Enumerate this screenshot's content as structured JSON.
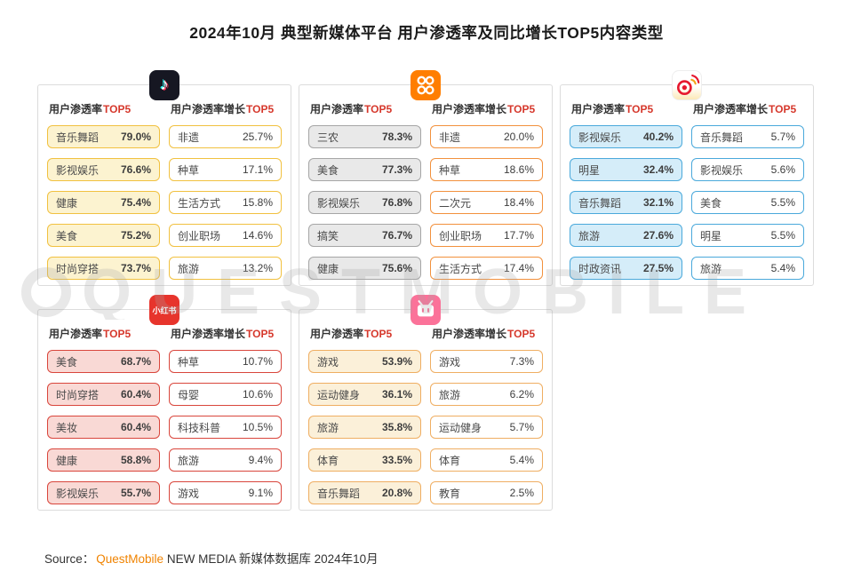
{
  "page": {
    "title": "2024年10月 典型新媒体平台 用户渗透率及同比增长TOP5内容类型",
    "watermark_text": "QUESTMOBILE",
    "source_prefix": "Source：",
    "source_brand": "QuestMobile",
    "source_rest": " NEW MEDIA 新媒体数据库 2024年10月",
    "brand_color": "#F08300",
    "top5_color": "#D6382C"
  },
  "headers": {
    "penetration": "用户渗透率",
    "growth": "用户渗透率增长",
    "top5": "TOP5"
  },
  "panels": [
    {
      "platform": "抖音",
      "left_accent": "#F1C140",
      "left_fill": "#FCF3D0",
      "right_accent": "#F1C140",
      "penetration": [
        {
          "label": "音乐舞蹈",
          "value": "79.0%"
        },
        {
          "label": "影视娱乐",
          "value": "76.6%"
        },
        {
          "label": "健康",
          "value": "75.4%"
        },
        {
          "label": "美食",
          "value": "75.2%"
        },
        {
          "label": "时尚穿搭",
          "value": "73.7%"
        }
      ],
      "growth": [
        {
          "label": "非遗",
          "value": "25.7%"
        },
        {
          "label": "种草",
          "value": "17.1%"
        },
        {
          "label": "生活方式",
          "value": "15.8%"
        },
        {
          "label": "创业职场",
          "value": "14.6%"
        },
        {
          "label": "旅游",
          "value": "13.2%"
        }
      ]
    },
    {
      "platform": "快手",
      "left_accent": "#A6A6A6",
      "left_fill": "#E9E9E9",
      "right_accent": "#F2913D",
      "penetration": [
        {
          "label": "三农",
          "value": "78.3%"
        },
        {
          "label": "美食",
          "value": "77.3%"
        },
        {
          "label": "影视娱乐",
          "value": "76.8%"
        },
        {
          "label": "搞笑",
          "value": "76.7%"
        },
        {
          "label": "健康",
          "value": "75.6%"
        }
      ],
      "growth": [
        {
          "label": "非遗",
          "value": "20.0%"
        },
        {
          "label": "种草",
          "value": "18.6%"
        },
        {
          "label": "二次元",
          "value": "18.4%"
        },
        {
          "label": "创业职场",
          "value": "17.7%"
        },
        {
          "label": "生活方式",
          "value": "17.4%"
        }
      ]
    },
    {
      "platform": "微博",
      "left_accent": "#4AA9DB",
      "left_fill": "#D5EDF9",
      "right_accent": "#4AA9DB",
      "penetration": [
        {
          "label": "影视娱乐",
          "value": "40.2%"
        },
        {
          "label": "明星",
          "value": "32.4%"
        },
        {
          "label": "音乐舞蹈",
          "value": "32.1%"
        },
        {
          "label": "旅游",
          "value": "27.6%"
        },
        {
          "label": "时政资讯",
          "value": "27.5%"
        }
      ],
      "growth": [
        {
          "label": "音乐舞蹈",
          "value": "5.7%"
        },
        {
          "label": "影视娱乐",
          "value": "5.6%"
        },
        {
          "label": "美食",
          "value": "5.5%"
        },
        {
          "label": "明星",
          "value": "5.5%"
        },
        {
          "label": "旅游",
          "value": "5.4%"
        }
      ]
    },
    {
      "platform": "小红书",
      "icon_text": "小红书",
      "left_accent": "#D9463C",
      "left_fill": "#F9D9D5",
      "right_accent": "#D9463C",
      "penetration": [
        {
          "label": "美食",
          "value": "68.7%"
        },
        {
          "label": "时尚穿搭",
          "value": "60.4%"
        },
        {
          "label": "美妆",
          "value": "60.4%"
        },
        {
          "label": "健康",
          "value": "58.8%"
        },
        {
          "label": "影视娱乐",
          "value": "55.7%"
        }
      ],
      "growth": [
        {
          "label": "种草",
          "value": "10.7%"
        },
        {
          "label": "母婴",
          "value": "10.6%"
        },
        {
          "label": "科技科普",
          "value": "10.5%"
        },
        {
          "label": "旅游",
          "value": "9.4%"
        },
        {
          "label": "游戏",
          "value": "9.1%"
        }
      ]
    },
    {
      "platform": "哔哩哔哩",
      "left_accent": "#EFAE62",
      "left_fill": "#FBF0D9",
      "right_accent": "#EFAE62",
      "penetration": [
        {
          "label": "游戏",
          "value": "53.9%"
        },
        {
          "label": "运动健身",
          "value": "36.1%"
        },
        {
          "label": "旅游",
          "value": "35.8%"
        },
        {
          "label": "体育",
          "value": "33.5%"
        },
        {
          "label": "音乐舞蹈",
          "value": "20.8%"
        }
      ],
      "growth": [
        {
          "label": "游戏",
          "value": "7.3%"
        },
        {
          "label": "旅游",
          "value": "6.2%"
        },
        {
          "label": "运动健身",
          "value": "5.7%"
        },
        {
          "label": "体育",
          "value": "5.4%"
        },
        {
          "label": "教育",
          "value": "2.5%"
        }
      ]
    }
  ],
  "chart_data": [
    {
      "type": "table",
      "platform": "抖音",
      "tables": [
        {
          "name": "用户渗透率TOP5",
          "unit": "%",
          "categories": [
            "音乐舞蹈",
            "影视娱乐",
            "健康",
            "美食",
            "时尚穿搭"
          ],
          "values": [
            79.0,
            76.6,
            75.4,
            75.2,
            73.7
          ]
        },
        {
          "name": "用户渗透率增长TOP5",
          "unit": "%",
          "categories": [
            "非遗",
            "种草",
            "生活方式",
            "创业职场",
            "旅游"
          ],
          "values": [
            25.7,
            17.1,
            15.8,
            14.6,
            13.2
          ]
        }
      ]
    },
    {
      "type": "table",
      "platform": "快手",
      "tables": [
        {
          "name": "用户渗透率TOP5",
          "unit": "%",
          "categories": [
            "三农",
            "美食",
            "影视娱乐",
            "搞笑",
            "健康"
          ],
          "values": [
            78.3,
            77.3,
            76.8,
            76.7,
            75.6
          ]
        },
        {
          "name": "用户渗透率增长TOP5",
          "unit": "%",
          "categories": [
            "非遗",
            "种草",
            "二次元",
            "创业职场",
            "生活方式"
          ],
          "values": [
            20.0,
            18.6,
            18.4,
            17.7,
            17.4
          ]
        }
      ]
    },
    {
      "type": "table",
      "platform": "微博",
      "tables": [
        {
          "name": "用户渗透率TOP5",
          "unit": "%",
          "categories": [
            "影视娱乐",
            "明星",
            "音乐舞蹈",
            "旅游",
            "时政资讯"
          ],
          "values": [
            40.2,
            32.4,
            32.1,
            27.6,
            27.5
          ]
        },
        {
          "name": "用户渗透率增长TOP5",
          "unit": "%",
          "categories": [
            "音乐舞蹈",
            "影视娱乐",
            "美食",
            "明星",
            "旅游"
          ],
          "values": [
            5.7,
            5.6,
            5.5,
            5.5,
            5.4
          ]
        }
      ]
    },
    {
      "type": "table",
      "platform": "小红书",
      "tables": [
        {
          "name": "用户渗透率TOP5",
          "unit": "%",
          "categories": [
            "美食",
            "时尚穿搭",
            "美妆",
            "健康",
            "影视娱乐"
          ],
          "values": [
            68.7,
            60.4,
            60.4,
            58.8,
            55.7
          ]
        },
        {
          "name": "用户渗透率增长TOP5",
          "unit": "%",
          "categories": [
            "种草",
            "母婴",
            "科技科普",
            "旅游",
            "游戏"
          ],
          "values": [
            10.7,
            10.6,
            10.5,
            9.4,
            9.1
          ]
        }
      ]
    },
    {
      "type": "table",
      "platform": "哔哩哔哩",
      "tables": [
        {
          "name": "用户渗透率TOP5",
          "unit": "%",
          "categories": [
            "游戏",
            "运动健身",
            "旅游",
            "体育",
            "音乐舞蹈"
          ],
          "values": [
            53.9,
            36.1,
            35.8,
            33.5,
            20.8
          ]
        },
        {
          "name": "用户渗透率增长TOP5",
          "unit": "%",
          "categories": [
            "游戏",
            "旅游",
            "运动健身",
            "体育",
            "教育"
          ],
          "values": [
            7.3,
            6.2,
            5.7,
            5.4,
            2.5
          ]
        }
      ]
    }
  ]
}
